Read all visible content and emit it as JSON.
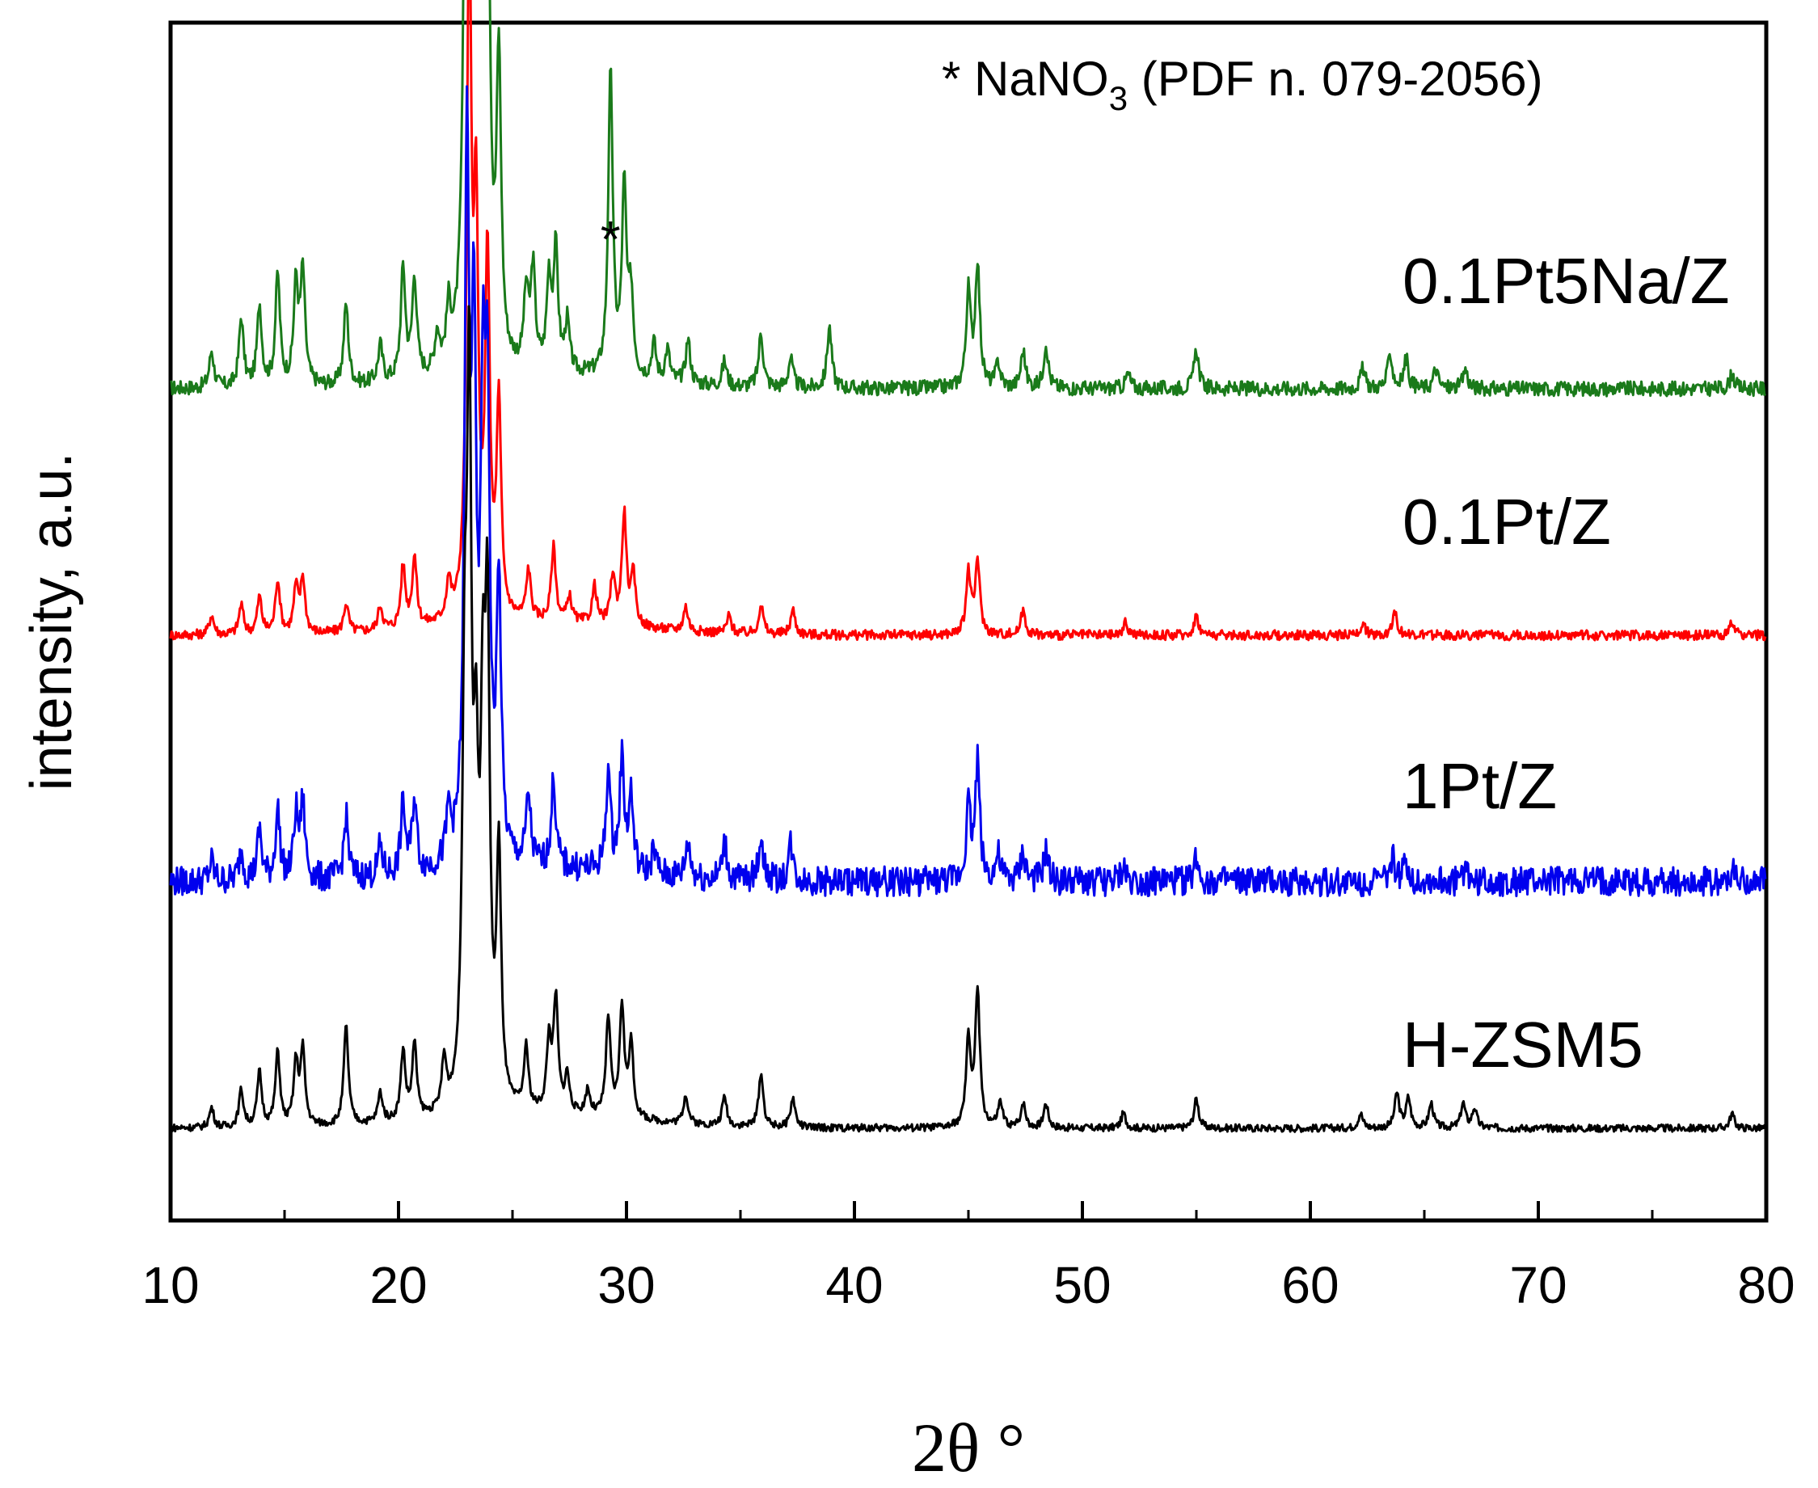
{
  "chart_data": {
    "type": "line",
    "xlabel": "2θ °",
    "ylabel": "intensity, a.u.",
    "xlim": [
      10,
      80
    ],
    "x_ticks": [
      "10",
      "20",
      "30",
      "40",
      "50",
      "60",
      "70",
      "80"
    ],
    "y_ticks_shown": false,
    "grid": false,
    "annotation": {
      "prefix": "* NaNO",
      "subscript": "3",
      "suffix": " (PDF n. 079-2056)"
    },
    "peak_marker": {
      "symbol": "*",
      "x": 29.3,
      "series": "0.1Pt5Na/Z"
    },
    "series": [
      {
        "name": "0.1Pt5Na/Z",
        "color": "#1a7a1a",
        "baseline": 3.0,
        "noise": 0.03,
        "peaks": [
          [
            11.8,
            0.15
          ],
          [
            13.1,
            0.28
          ],
          [
            13.9,
            0.33
          ],
          [
            14.7,
            0.45
          ],
          [
            15.5,
            0.4
          ],
          [
            15.8,
            0.45
          ],
          [
            17.7,
            0.33
          ],
          [
            19.2,
            0.15
          ],
          [
            20.2,
            0.45
          ],
          [
            20.7,
            0.4
          ],
          [
            21.7,
            0.15
          ],
          [
            22.2,
            0.22
          ],
          [
            23.0,
            3.6
          ],
          [
            23.3,
            3.0
          ],
          [
            23.7,
            1.6
          ],
          [
            23.9,
            2.0
          ],
          [
            24.4,
            1.2
          ],
          [
            25.6,
            0.3
          ],
          [
            25.9,
            0.4
          ],
          [
            26.6,
            0.36
          ],
          [
            26.9,
            0.48
          ],
          [
            27.4,
            0.2
          ],
          [
            29.3,
            1.22
          ],
          [
            29.9,
            0.75
          ],
          [
            30.2,
            0.32
          ],
          [
            31.2,
            0.15
          ],
          [
            31.8,
            0.13
          ],
          [
            32.7,
            0.18
          ],
          [
            34.3,
            0.1
          ],
          [
            35.9,
            0.22
          ],
          [
            37.2,
            0.12
          ],
          [
            38.9,
            0.25
          ],
          [
            45.0,
            0.38
          ],
          [
            45.4,
            0.5
          ],
          [
            46.3,
            0.1
          ],
          [
            47.4,
            0.15
          ],
          [
            48.4,
            0.18
          ],
          [
            52.0,
            0.06
          ],
          [
            55.0,
            0.16
          ],
          [
            62.3,
            0.08
          ],
          [
            63.5,
            0.14
          ],
          [
            64.2,
            0.12
          ],
          [
            65.5,
            0.08
          ],
          [
            66.8,
            0.08
          ],
          [
            78.5,
            0.06
          ]
        ]
      },
      {
        "name": "0.1Pt/Z",
        "color": "#ff0000",
        "baseline": 2.0,
        "noise": 0.02,
        "peaks": [
          [
            11.8,
            0.08
          ],
          [
            13.1,
            0.12
          ],
          [
            13.9,
            0.15
          ],
          [
            14.7,
            0.22
          ],
          [
            15.5,
            0.18
          ],
          [
            15.8,
            0.22
          ],
          [
            17.7,
            0.12
          ],
          [
            19.2,
            0.1
          ],
          [
            20.2,
            0.25
          ],
          [
            20.7,
            0.28
          ],
          [
            22.2,
            0.15
          ],
          [
            23.1,
            2.75
          ],
          [
            23.4,
            1.5
          ],
          [
            23.9,
            1.45
          ],
          [
            24.4,
            0.85
          ],
          [
            25.7,
            0.2
          ],
          [
            26.8,
            0.3
          ],
          [
            27.5,
            0.1
          ],
          [
            28.6,
            0.15
          ],
          [
            29.4,
            0.2
          ],
          [
            29.9,
            0.45
          ],
          [
            30.3,
            0.2
          ],
          [
            32.6,
            0.1
          ],
          [
            34.5,
            0.07
          ],
          [
            35.9,
            0.12
          ],
          [
            37.3,
            0.1
          ],
          [
            45.0,
            0.25
          ],
          [
            45.4,
            0.3
          ],
          [
            47.4,
            0.1
          ],
          [
            51.9,
            0.05
          ],
          [
            55.0,
            0.08
          ],
          [
            62.3,
            0.05
          ],
          [
            63.7,
            0.1
          ],
          [
            78.5,
            0.05
          ]
        ]
      },
      {
        "name": "1Pt/Z",
        "color": "#0000ee",
        "baseline": 1.0,
        "noise": 0.06,
        "peaks": [
          [
            11.8,
            0.08
          ],
          [
            13.1,
            0.12
          ],
          [
            13.9,
            0.2
          ],
          [
            14.7,
            0.28
          ],
          [
            15.5,
            0.25
          ],
          [
            15.8,
            0.3
          ],
          [
            17.7,
            0.25
          ],
          [
            19.2,
            0.12
          ],
          [
            20.2,
            0.28
          ],
          [
            20.7,
            0.3
          ],
          [
            22.2,
            0.2
          ],
          [
            23.0,
            2.8
          ],
          [
            23.3,
            2.0
          ],
          [
            23.7,
            1.6
          ],
          [
            23.9,
            1.7
          ],
          [
            24.4,
            1.1
          ],
          [
            25.7,
            0.28
          ],
          [
            26.8,
            0.35
          ],
          [
            29.2,
            0.4
          ],
          [
            29.8,
            0.45
          ],
          [
            30.2,
            0.3
          ],
          [
            31.2,
            0.1
          ],
          [
            32.7,
            0.15
          ],
          [
            34.3,
            0.15
          ],
          [
            35.9,
            0.18
          ],
          [
            37.2,
            0.15
          ],
          [
            45.0,
            0.3
          ],
          [
            45.4,
            0.48
          ],
          [
            46.3,
            0.1
          ],
          [
            47.4,
            0.12
          ],
          [
            48.4,
            0.12
          ],
          [
            51.8,
            0.06
          ],
          [
            55.0,
            0.1
          ],
          [
            63.6,
            0.1
          ],
          [
            64.2,
            0.08
          ],
          [
            66.8,
            0.06
          ],
          [
            78.5,
            0.05
          ]
        ]
      },
      {
        "name": "H-ZSM5",
        "color": "#000000",
        "baseline": 0.0,
        "noise": 0.015,
        "peaks": [
          [
            11.8,
            0.08
          ],
          [
            13.1,
            0.15
          ],
          [
            13.9,
            0.22
          ],
          [
            14.7,
            0.3
          ],
          [
            15.5,
            0.25
          ],
          [
            15.8,
            0.3
          ],
          [
            17.7,
            0.4
          ],
          [
            19.2,
            0.12
          ],
          [
            20.2,
            0.28
          ],
          [
            20.7,
            0.3
          ],
          [
            22.0,
            0.2
          ],
          [
            22.9,
            1.45
          ],
          [
            23.1,
            2.7
          ],
          [
            23.4,
            1.1
          ],
          [
            23.7,
            1.3
          ],
          [
            23.9,
            1.8
          ],
          [
            24.4,
            1.0
          ],
          [
            25.6,
            0.25
          ],
          [
            26.6,
            0.28
          ],
          [
            26.9,
            0.45
          ],
          [
            27.4,
            0.15
          ],
          [
            28.3,
            0.1
          ],
          [
            29.2,
            0.4
          ],
          [
            29.8,
            0.45
          ],
          [
            30.2,
            0.3
          ],
          [
            32.6,
            0.12
          ],
          [
            34.3,
            0.12
          ],
          [
            35.9,
            0.22
          ],
          [
            37.3,
            0.12
          ],
          [
            45.0,
            0.35
          ],
          [
            45.4,
            0.55
          ],
          [
            46.4,
            0.1
          ],
          [
            47.4,
            0.1
          ],
          [
            48.4,
            0.1
          ],
          [
            51.8,
            0.06
          ],
          [
            55.0,
            0.12
          ],
          [
            62.2,
            0.06
          ],
          [
            63.8,
            0.14
          ],
          [
            64.3,
            0.12
          ],
          [
            65.3,
            0.1
          ],
          [
            66.7,
            0.1
          ],
          [
            67.2,
            0.08
          ],
          [
            78.5,
            0.06
          ]
        ]
      }
    ]
  }
}
